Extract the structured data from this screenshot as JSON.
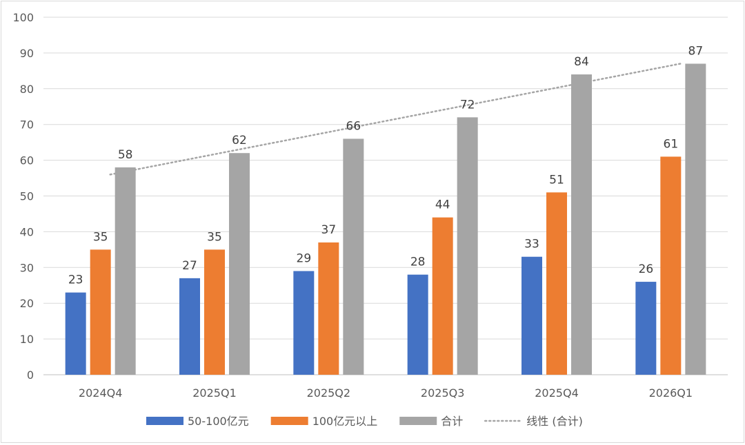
{
  "chart_data": {
    "type": "bar",
    "title": "",
    "xlabel": "",
    "ylabel": "",
    "categories": [
      "2024Q4",
      "2025Q1",
      "2025Q2",
      "2025Q3",
      "2025Q4",
      "2026Q1"
    ],
    "ylim": [
      0,
      100
    ],
    "yticks": [
      0,
      10,
      20,
      30,
      40,
      50,
      60,
      70,
      80,
      90,
      100
    ],
    "grid": true,
    "legend_position": "bottom",
    "data_labels": true,
    "series": [
      {
        "name": "50-100亿元",
        "color": "#4472C4",
        "values": [
          23,
          27,
          29,
          28,
          33,
          26
        ]
      },
      {
        "name": "100亿元以上",
        "color": "#ED7D31",
        "values": [
          35,
          35,
          37,
          44,
          51,
          61
        ]
      },
      {
        "name": "合计",
        "color": "#A5A5A5",
        "values": [
          58,
          62,
          66,
          72,
          84,
          87
        ]
      }
    ],
    "trendline": {
      "name": "线性 (合计)",
      "series": "合计",
      "kind": "linear",
      "style": "dotted",
      "color": "#A5A5A5"
    }
  }
}
